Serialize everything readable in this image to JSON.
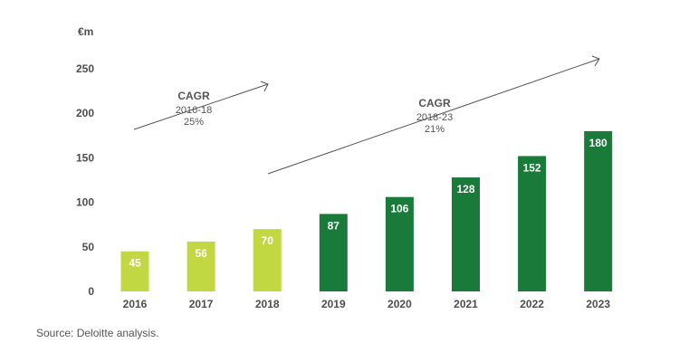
{
  "chart_data": {
    "type": "bar",
    "ylabel": "€m",
    "ylim": [
      0,
      250
    ],
    "yticks": [
      "0",
      "50",
      "100",
      "150",
      "200",
      "250"
    ],
    "categories": [
      "2016",
      "2017",
      "2018",
      "2019",
      "2020",
      "2021",
      "2022",
      "2023"
    ],
    "values": [
      45,
      56,
      70,
      87,
      106,
      128,
      152,
      180
    ],
    "data_labels": [
      "45",
      "56",
      "70",
      "87",
      "106",
      "128",
      "152",
      "180"
    ],
    "colors": {
      "light": "#c2d843",
      "dark": "#1a7a3a",
      "bar_color_by_index": [
        "light",
        "light",
        "light",
        "dark",
        "dark",
        "dark",
        "dark",
        "dark"
      ]
    },
    "grid": false,
    "annotations": [
      {
        "title": "CAGR",
        "period": "2016-18",
        "rate": "25%",
        "from": "2016",
        "to": "2018"
      },
      {
        "title": "CAGR",
        "period": "2018-23",
        "rate": "21%",
        "from": "2018",
        "to": "2023"
      }
    ]
  },
  "footer": {
    "source": "Source: Deloitte analysis."
  }
}
